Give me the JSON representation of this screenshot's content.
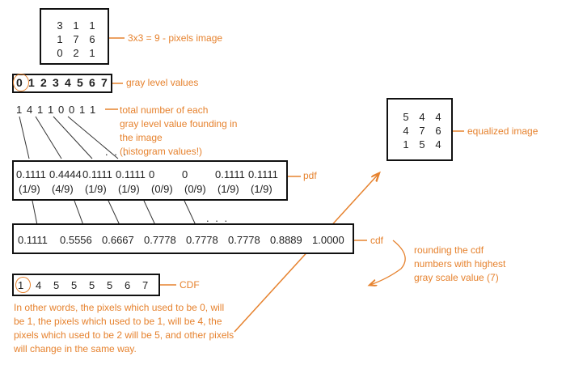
{
  "input_matrix": {
    "rows": [
      [
        "3",
        "1",
        "1"
      ],
      [
        "1",
        "7",
        "6"
      ],
      [
        "0",
        "2",
        "1"
      ]
    ],
    "label": "3x3 = 9 - pixels image"
  },
  "gray_levels": {
    "values": [
      "0",
      "1",
      "2",
      "3",
      "4",
      "5",
      "6",
      "7"
    ],
    "label": "gray level values"
  },
  "histogram": {
    "values": [
      "1",
      "4",
      "1",
      "1",
      "0",
      "0",
      "1",
      "1"
    ],
    "label_lines": [
      "total number of each",
      "gray level value founding in",
      "the image",
      "(histogram values!)"
    ]
  },
  "pdf": {
    "values": [
      "0.1111",
      "0.4444",
      "0.1111",
      "0.1111",
      "0",
      "0",
      "0.1111",
      "0.1111"
    ],
    "fractions": [
      "(1/9)",
      "(4/9)",
      "(1/9)",
      "(1/9)",
      "(0/9)",
      "(0/9)",
      "(1/9)",
      "(1/9)"
    ],
    "label": "pdf"
  },
  "cdf": {
    "values": [
      "0.1111",
      "0.5556",
      "0.6667",
      "0.7778",
      "0.7778",
      "0.7778",
      "0.8889",
      "1.0000"
    ],
    "label": "cdf"
  },
  "rounding_note": [
    "rounding the cdf",
    "numbers with highest",
    "gray scale  value  (7)"
  ],
  "CDF": {
    "values": [
      "1",
      "4",
      "5",
      "5",
      "5",
      "5",
      "6",
      "7"
    ],
    "label": "CDF"
  },
  "explanation": [
    "In other words, the pixels which used to be 0, will",
    "be 1, the pixels which used to be 1, will be 4,  the",
    "pixels which used to be 2 will be 5, and other pixels",
    "will change in the same way."
  ],
  "equalized_matrix": {
    "rows": [
      [
        "5",
        "4",
        "4"
      ],
      [
        "4",
        "7",
        "6"
      ],
      [
        "1",
        "5",
        "4"
      ]
    ],
    "label": "equalized image"
  },
  "ellipsis": ". . .",
  "colors": {
    "accent": "#e6822e",
    "border": "#111111"
  }
}
